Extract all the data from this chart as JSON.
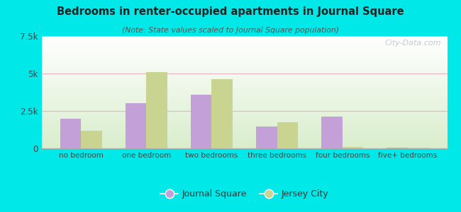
{
  "title": "Bedrooms in renter-occupied apartments in Journal Square",
  "subtitle": "(Note: State values scaled to Journal Square population)",
  "categories": [
    "no bedroom",
    "one bedroom",
    "two bedrooms",
    "three bedrooms",
    "four bedrooms",
    "five+ bedrooms"
  ],
  "journal_square": [
    2000,
    3000,
    3600,
    1450,
    2100,
    60
  ],
  "jersey_city": [
    1200,
    5100,
    4600,
    1750,
    80,
    55
  ],
  "bar_color_js": "#c4a0d8",
  "bar_color_jc": "#c8d490",
  "bg_color": "#00e8e8",
  "ylim": [
    0,
    7500
  ],
  "yticks": [
    0,
    2500,
    5000,
    7500
  ],
  "ytick_labels": [
    "0",
    "2.5k",
    "5k",
    "7.5k"
  ],
  "legend_js": "Journal Square",
  "legend_jc": "Jersey City",
  "watermark": "City-Data.com",
  "grid_color": "#e8b8c8",
  "title_color": "#222222",
  "subtitle_color": "#555555",
  "tick_label_color": "#444444"
}
